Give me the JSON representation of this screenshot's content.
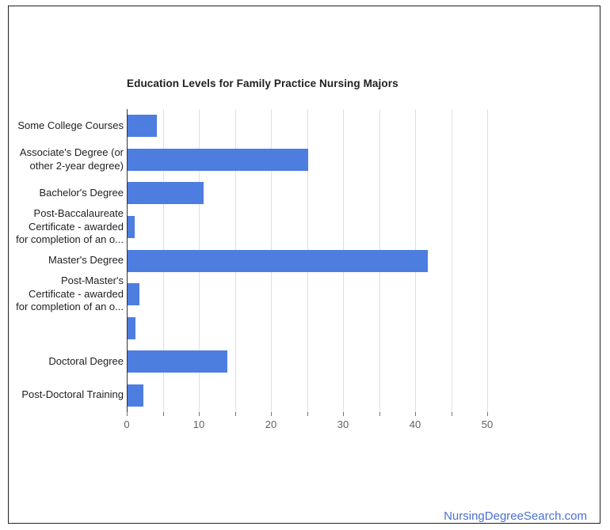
{
  "chart_data": {
    "type": "bar",
    "orientation": "horizontal",
    "title": "Education Levels for Family Practice Nursing Majors",
    "categories": [
      "Some College Courses",
      "Associate's Degree (or other 2-year degree)",
      "Bachelor's Degree",
      "Post-Baccalaureate Certificate - awarded for completion of an o...",
      "Master's Degree",
      "Post-Master's Certificate - awarded for completion of an o...",
      "",
      "Doctoral Degree",
      "Post-Doctoral Training"
    ],
    "category_display_lines": [
      [
        "Some College Courses"
      ],
      [
        "Associate's Degree (or",
        "other 2-year degree)"
      ],
      [
        "Bachelor's Degree"
      ],
      [
        "Post-Baccalaureate",
        "Certificate - awarded",
        "for completion of an o..."
      ],
      [
        "Master's Degree"
      ],
      [
        "Post-Master's",
        "Certificate - awarded",
        "for completion of an o..."
      ],
      [],
      [
        "Doctoral Degree"
      ],
      [
        "Post-Doctoral Training"
      ]
    ],
    "values": [
      4.1,
      25.1,
      10.5,
      1.0,
      41.6,
      1.7,
      1.1,
      13.9,
      2.2
    ],
    "xlim": [
      0,
      50
    ],
    "x_major_tick_labels": [
      "0",
      "10",
      "20",
      "30",
      "40",
      "50"
    ],
    "x_major_tick_values": [
      0,
      10,
      20,
      30,
      40,
      50
    ],
    "x_minor_tick_step": 5,
    "grid": true,
    "legend": "none",
    "bar_color": "#4e7de0",
    "gridline_color": "#e0e0e0",
    "axis_line_color": "#333333",
    "title_color": "#212121",
    "category_label_color": "#212121",
    "tick_label_color": "#616161"
  },
  "footer": {
    "link_label": "NursingDegreeSearch.com",
    "link_color": "#4a6fd4"
  }
}
